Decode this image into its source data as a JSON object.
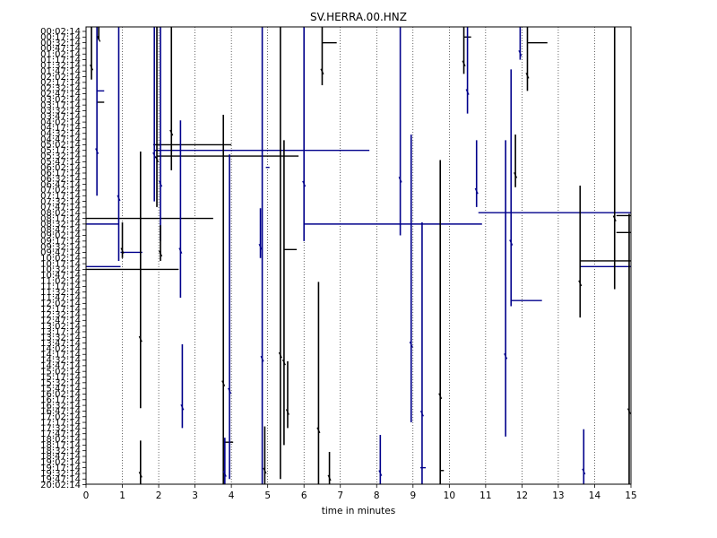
{
  "chart_data": {
    "type": "line",
    "title": "SV.HERRA.00.HNZ",
    "xlabel": "time in minutes",
    "ylabel": "",
    "xlim": [
      0,
      15
    ],
    "x_ticks": [
      0,
      1,
      2,
      3,
      4,
      5,
      6,
      7,
      8,
      9,
      10,
      11,
      12,
      13,
      14,
      15
    ],
    "x_gridlines": true,
    "row_labels": [
      "00:02:14",
      "00:17:14",
      "00:32:14",
      "00:47:14",
      "01:02:14",
      "01:17:14",
      "01:32:14",
      "01:47:14",
      "02:02:14",
      "02:17:14",
      "02:32:14",
      "02:47:14",
      "03:02:14",
      "03:17:14",
      "03:32:14",
      "03:47:14",
      "04:02:14",
      "04:17:14",
      "04:32:14",
      "04:47:14",
      "05:02:14",
      "05:17:14",
      "05:32:14",
      "05:47:14",
      "06:02:14",
      "06:17:14",
      "06:32:14",
      "06:47:14",
      "07:02:14",
      "07:17:14",
      "07:32:14",
      "07:47:14",
      "08:02:14",
      "08:17:14",
      "08:32:14",
      "08:47:14",
      "09:02:14",
      "09:17:14",
      "09:32:14",
      "09:47:14",
      "10:02:14",
      "10:17:14",
      "10:32:14",
      "10:47:14",
      "11:02:14",
      "11:17:14",
      "11:32:14",
      "11:47:14",
      "12:02:14",
      "12:17:14",
      "12:32:14",
      "12:47:14",
      "13:02:14",
      "13:17:14",
      "13:32:14",
      "13:47:14",
      "14:02:14",
      "14:17:14",
      "14:32:14",
      "14:47:14",
      "15:02:14",
      "15:17:14",
      "15:32:14",
      "15:47:14",
      "16:02:14",
      "16:17:14",
      "16:32:14",
      "16:47:14",
      "17:02:14",
      "17:17:14",
      "17:32:14",
      "17:47:14",
      "18:02:14",
      "18:17:14",
      "18:32:14",
      "18:47:14",
      "19:02:14",
      "19:17:14",
      "19:32:14",
      "19:47:14",
      "20:02:14"
    ],
    "row_colors": [
      "#000000",
      "#00008b"
    ],
    "vertical_traces": [
      {
        "t": 0.15,
        "y0": 0.0,
        "y1": 8.5,
        "color": "#000000"
      },
      {
        "t": 0.3,
        "y0": 0.0,
        "y1": 29.0,
        "color": "#00008b"
      },
      {
        "t": 0.35,
        "y0": 0.0,
        "y1": 1.5,
        "color": "#000000"
      },
      {
        "t": 0.9,
        "y0": 0.0,
        "y1": 40.5,
        "color": "#00008b"
      },
      {
        "t": 1.0,
        "y0": 34.5,
        "y1": 40.0,
        "color": "#000000"
      },
      {
        "t": 1.5,
        "y0": 22.0,
        "y1": 66.5,
        "color": "#000000"
      },
      {
        "t": 1.5,
        "y0": 73.0,
        "y1": 80.0,
        "color": "#000000"
      },
      {
        "t": 1.88,
        "y0": 0.0,
        "y1": 30.0,
        "color": "#00008b"
      },
      {
        "t": 1.95,
        "y0": 0.0,
        "y1": 31.0,
        "color": "#000000"
      },
      {
        "t": 2.05,
        "y0": 0.0,
        "y1": 37.0,
        "color": "#00008b"
      },
      {
        "t": 2.05,
        "y0": 35.0,
        "y1": 40.5,
        "color": "#000000"
      },
      {
        "t": 2.35,
        "y0": 0.0,
        "y1": 24.5,
        "color": "#000000"
      },
      {
        "t": 2.6,
        "y0": 16.5,
        "y1": 47.0,
        "color": "#00008b"
      },
      {
        "t": 2.65,
        "y0": 56.0,
        "y1": 70.0,
        "color": "#00008b"
      },
      {
        "t": 3.78,
        "y0": 15.5,
        "y1": 80.0,
        "color": "#000000"
      },
      {
        "t": 3.82,
        "y0": 72.5,
        "y1": 80.0,
        "color": "#00008b"
      },
      {
        "t": 3.95,
        "y0": 22.5,
        "y1": 79.0,
        "color": "#00008b"
      },
      {
        "t": 4.8,
        "y0": 32.0,
        "y1": 40.0,
        "color": "#00008b"
      },
      {
        "t": 4.85,
        "y0": 0.0,
        "y1": 80.0,
        "color": "#00008b"
      },
      {
        "t": 4.92,
        "y0": 70.5,
        "y1": 80.0,
        "color": "#000000"
      },
      {
        "t": 5.35,
        "y0": 0.0,
        "y1": 79.0,
        "color": "#000000"
      },
      {
        "t": 5.45,
        "y0": 20.0,
        "y1": 73.0,
        "color": "#000000"
      },
      {
        "t": 5.55,
        "y0": 59.0,
        "y1": 70.0,
        "color": "#000000"
      },
      {
        "t": 6.0,
        "y0": 0.0,
        "y1": 37.0,
        "color": "#00008b"
      },
      {
        "t": 6.4,
        "y0": 45.0,
        "y1": 80.0,
        "color": "#000000"
      },
      {
        "t": 6.5,
        "y0": 0.0,
        "y1": 9.5,
        "color": "#000000"
      },
      {
        "t": 6.7,
        "y0": 75.0,
        "y1": 80.0,
        "color": "#000000"
      },
      {
        "t": 8.1,
        "y0": 72.0,
        "y1": 80.0,
        "color": "#00008b"
      },
      {
        "t": 8.65,
        "y0": 0.0,
        "y1": 36.0,
        "color": "#00008b"
      },
      {
        "t": 8.95,
        "y0": 19.0,
        "y1": 69.0,
        "color": "#00008b"
      },
      {
        "t": 9.25,
        "y0": 34.5,
        "y1": 80.0,
        "color": "#00008b"
      },
      {
        "t": 9.75,
        "y0": 23.5,
        "y1": 80.0,
        "color": "#000000"
      },
      {
        "t": 10.4,
        "y0": 0.0,
        "y1": 7.5,
        "color": "#000000"
      },
      {
        "t": 10.5,
        "y0": 0.0,
        "y1": 14.5,
        "color": "#00008b"
      },
      {
        "t": 10.75,
        "y0": 20.0,
        "y1": 31.0,
        "color": "#00008b"
      },
      {
        "t": 11.55,
        "y0": 20.0,
        "y1": 71.5,
        "color": "#00008b"
      },
      {
        "t": 11.7,
        "y0": 7.5,
        "y1": 48.5,
        "color": "#00008b"
      },
      {
        "t": 11.82,
        "y0": 19.0,
        "y1": 27.5,
        "color": "#000000"
      },
      {
        "t": 11.95,
        "y0": 0.0,
        "y1": 5.0,
        "color": "#00008b"
      },
      {
        "t": 12.15,
        "y0": 0.0,
        "y1": 10.5,
        "color": "#000000"
      },
      {
        "t": 13.6,
        "y0": 28.0,
        "y1": 50.5,
        "color": "#000000"
      },
      {
        "t": 13.7,
        "y0": 71.0,
        "y1": 80.0,
        "color": "#00008b"
      },
      {
        "t": 14.55,
        "y0": 0.0,
        "y1": 45.5,
        "color": "#000000"
      },
      {
        "t": 14.95,
        "y0": 33.0,
        "y1": 80.0,
        "color": "#000000"
      }
    ],
    "horizontal_traces": [
      {
        "y": 10.5,
        "t0": 0.3,
        "t1": 0.5,
        "color": "#00008b"
      },
      {
        "y": 12.5,
        "t0": 0.3,
        "t1": 0.5,
        "color": "#000000"
      },
      {
        "y": 20.0,
        "t0": 1.85,
        "t1": 4.0,
        "color": "#000000"
      },
      {
        "y": 21.0,
        "t0": 1.9,
        "t1": 7.8,
        "color": "#00008b"
      },
      {
        "y": 22.0,
        "t0": 1.95,
        "t1": 5.85,
        "color": "#000000"
      },
      {
        "y": 24.0,
        "t0": 4.95,
        "t1": 5.05,
        "color": "#00008b"
      },
      {
        "y": 32.0,
        "t0": 10.8,
        "t1": 15.0,
        "color": "#00008b"
      },
      {
        "y": 32.5,
        "t0": 14.6,
        "t1": 15.0,
        "color": "#000000"
      },
      {
        "y": 33.0,
        "t0": 0.0,
        "t1": 3.5,
        "color": "#000000"
      },
      {
        "y": 34.0,
        "t0": 0.0,
        "t1": 0.9,
        "color": "#00008b"
      },
      {
        "y": 34.0,
        "t0": 6.0,
        "t1": 10.9,
        "color": "#00008b"
      },
      {
        "y": 35.5,
        "t0": 14.6,
        "t1": 15.0,
        "color": "#000000"
      },
      {
        "y": 38.5,
        "t0": 5.45,
        "t1": 5.8,
        "color": "#000000"
      },
      {
        "y": 39.0,
        "t0": 0.95,
        "t1": 1.55,
        "color": "#00008b"
      },
      {
        "y": 40.5,
        "t0": 13.6,
        "t1": 15.0,
        "color": "#000000"
      },
      {
        "y": 41.5,
        "t0": 0.0,
        "t1": 0.95,
        "color": "#00008b"
      },
      {
        "y": 41.5,
        "t0": 13.6,
        "t1": 15.0,
        "color": "#00008b"
      },
      {
        "y": 42.0,
        "t0": 0.0,
        "t1": 2.55,
        "color": "#000000"
      },
      {
        "y": 47.5,
        "t0": 11.7,
        "t1": 12.55,
        "color": "#00008b"
      },
      {
        "y": 72.5,
        "t0": 3.78,
        "t1": 4.05,
        "color": "#000000"
      },
      {
        "y": 2.0,
        "t0": 6.5,
        "t1": 6.9,
        "color": "#000000"
      },
      {
        "y": 1.0,
        "t0": 10.4,
        "t1": 10.6,
        "color": "#000000"
      },
      {
        "y": 2.0,
        "t0": 12.15,
        "t1": 12.7,
        "color": "#000000"
      },
      {
        "y": 77.0,
        "t0": 9.2,
        "t1": 9.35,
        "color": "#00008b"
      },
      {
        "y": 77.5,
        "t0": 9.75,
        "t1": 9.85,
        "color": "#000000"
      }
    ]
  }
}
